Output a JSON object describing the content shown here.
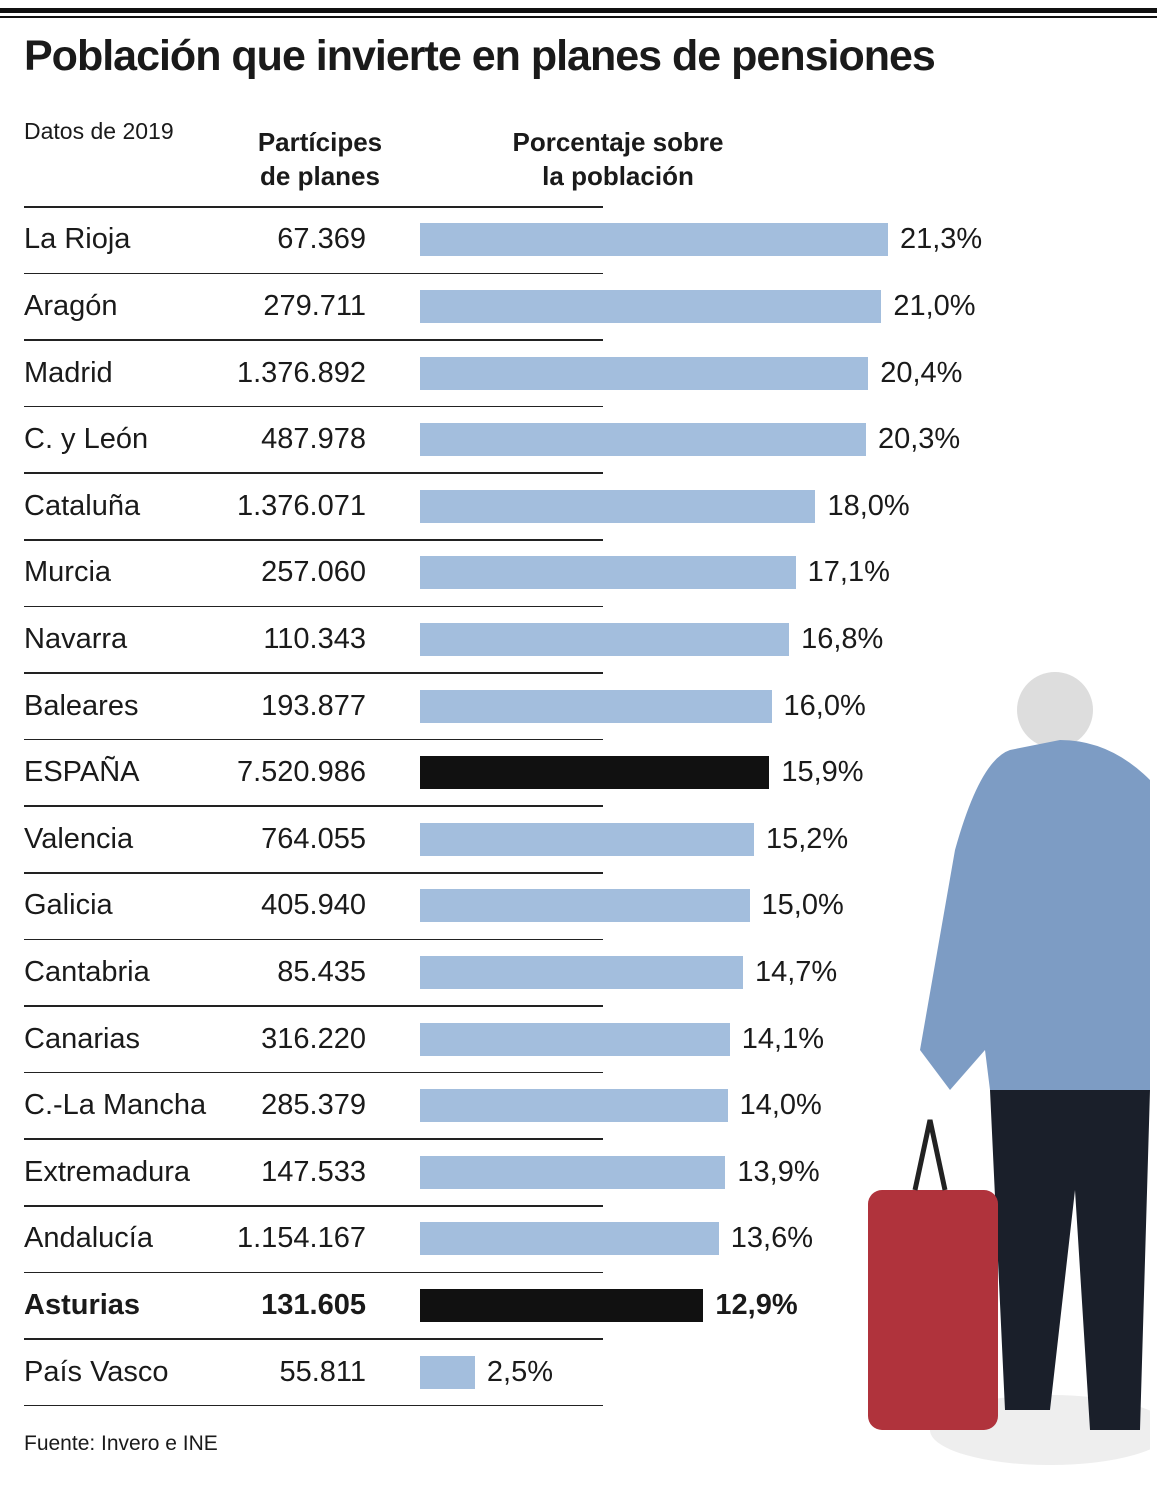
{
  "chart_data": {
    "type": "bar",
    "title": "Población que invierte en planes de pensiones",
    "subtitle": "Datos de 2019",
    "column_headers": [
      "Partícipes\nde planes",
      "Porcentaje sobre\nla población"
    ],
    "categories": [
      "La Rioja",
      "Aragón",
      "Madrid",
      "C. y León",
      "Cataluña",
      "Murcia",
      "Navarra",
      "Baleares",
      "ESPAÑA",
      "Valencia",
      "Galicia",
      "Cantabria",
      "Canarias",
      "C.-La Mancha",
      "Extremadura",
      "Andalucía",
      "Asturias",
      "País Vasco"
    ],
    "participants": [
      "67.369",
      "279.711",
      "1.376.892",
      "487.978",
      "1.376.071",
      "257.060",
      "110.343",
      "193.877",
      "7.520.986",
      "764.055",
      "405.940",
      "85.435",
      "316.220",
      "285.379",
      "147.533",
      "1.154.167",
      "131.605",
      "55.811"
    ],
    "values": [
      21.3,
      21.0,
      20.4,
      20.3,
      18.0,
      17.1,
      16.8,
      16.0,
      15.9,
      15.2,
      15.0,
      14.7,
      14.1,
      14.0,
      13.9,
      13.6,
      12.9,
      2.5
    ],
    "value_labels": [
      "21,3%",
      "21,0%",
      "20,4%",
      "20,3%",
      "18,0%",
      "17,1%",
      "16,8%",
      "16,0%",
      "15,9%",
      "15,2%",
      "15,0%",
      "14,7%",
      "14,1%",
      "14,0%",
      "13,9%",
      "13,6%",
      "12,9%",
      "2,5%"
    ],
    "colors": [
      "#a3bedd",
      "#a3bedd",
      "#a3bedd",
      "#a3bedd",
      "#a3bedd",
      "#a3bedd",
      "#a3bedd",
      "#a3bedd",
      "#111111",
      "#a3bedd",
      "#a3bedd",
      "#a3bedd",
      "#a3bedd",
      "#a3bedd",
      "#a3bedd",
      "#a3bedd",
      "#111111",
      "#a3bedd"
    ],
    "bold": [
      false,
      false,
      false,
      false,
      false,
      false,
      false,
      false,
      false,
      false,
      false,
      false,
      false,
      false,
      false,
      false,
      true,
      false
    ],
    "source": "Fuente: Invero e INE"
  }
}
